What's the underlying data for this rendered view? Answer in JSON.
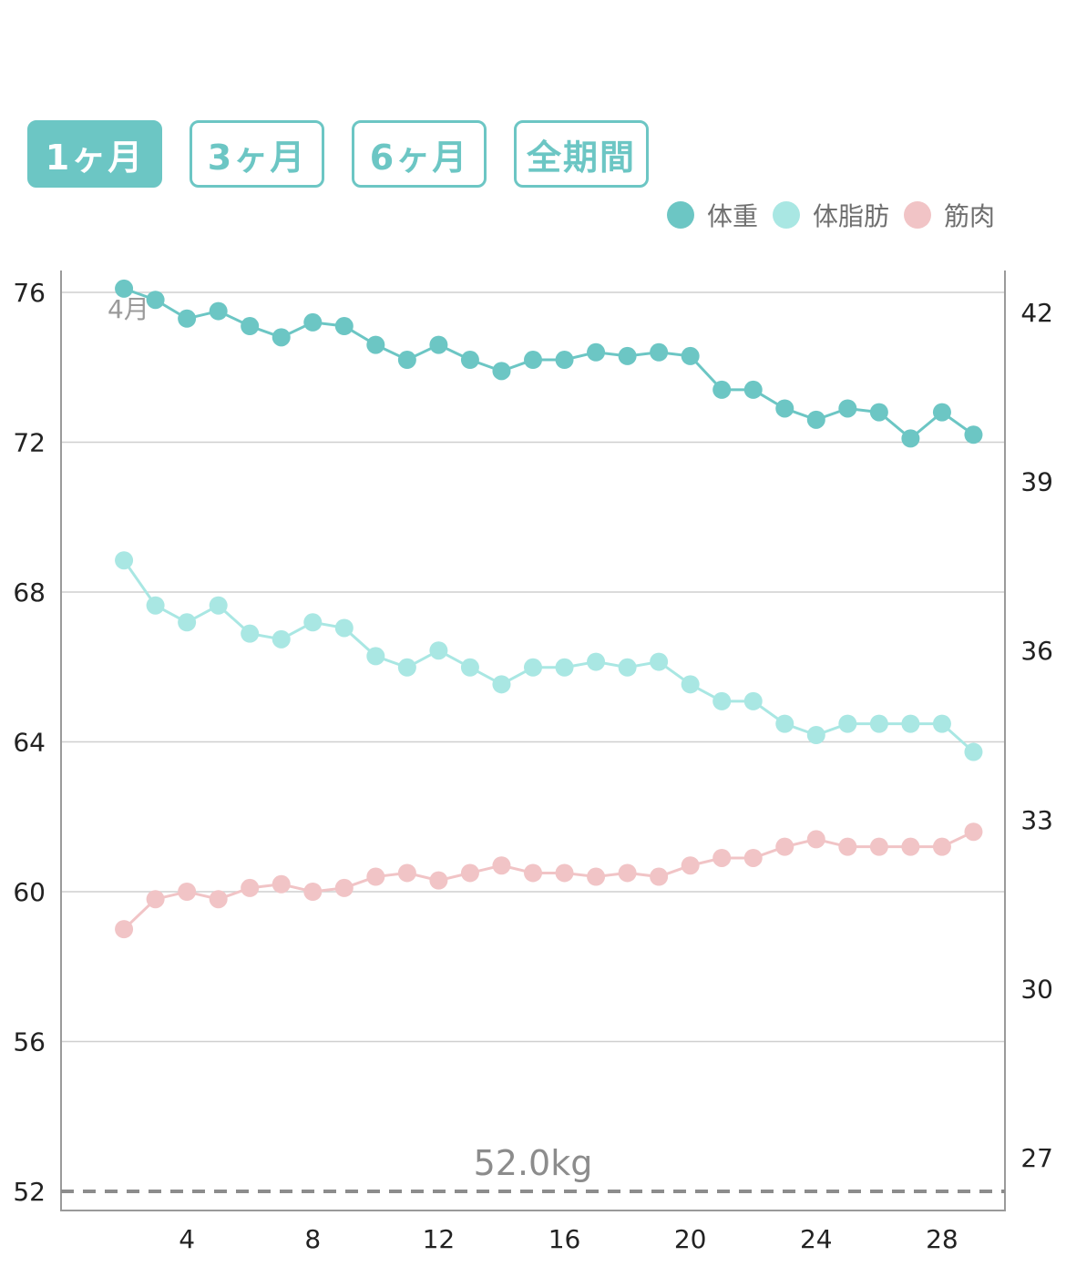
{
  "tabs": [
    {
      "label": "1ヶ月",
      "active": true
    },
    {
      "label": "3ヶ月",
      "active": false
    },
    {
      "label": "6ヶ月",
      "active": false
    },
    {
      "label": "全期間",
      "active": false
    }
  ],
  "colors": {
    "weight": "#6cc6c4",
    "body_fat": "#a9e7e3",
    "muscle": "#f1c4c6",
    "grid": "#cfcfcf",
    "axis": "#9a9a9a",
    "target": "#8c8c8c"
  },
  "legend": [
    {
      "label": "体重",
      "color": "#6cc6c4"
    },
    {
      "label": "体脂肪",
      "color": "#a9e7e3"
    },
    {
      "label": "筋肉",
      "color": "#f1c4c6"
    }
  ],
  "month_label": "4月",
  "target_label": "52.0kg",
  "chart_data": {
    "type": "line",
    "x": [
      2,
      3,
      4,
      5,
      6,
      7,
      8,
      9,
      10,
      11,
      12,
      13,
      14,
      15,
      16,
      17,
      18,
      19,
      20,
      21,
      22,
      23,
      24,
      25,
      26,
      27,
      28,
      29
    ],
    "xlim": [
      0,
      30
    ],
    "x_ticks": [
      4,
      8,
      12,
      16,
      20,
      24,
      28
    ],
    "y_left": {
      "range": [
        52,
        76.6
      ],
      "ticks": [
        76,
        72,
        68,
        64,
        60,
        56,
        52
      ]
    },
    "y_right": {
      "range": [
        26.3,
        42.7
      ],
      "ticks": [
        42,
        39,
        36,
        33,
        30,
        27
      ]
    },
    "target_line": 52.0,
    "grid": true,
    "legend_position": "top-right",
    "series": [
      {
        "name": "体重",
        "axis": "left",
        "color": "#6cc6c4",
        "values": [
          76.1,
          75.8,
          75.3,
          75.5,
          75.1,
          74.8,
          75.2,
          75.1,
          74.6,
          74.2,
          74.6,
          74.2,
          73.9,
          74.2,
          74.2,
          74.4,
          74.3,
          74.4,
          74.3,
          73.4,
          73.4,
          72.9,
          72.6,
          72.9,
          72.8,
          72.1,
          72.8,
          72.2
        ]
      },
      {
        "name": "体脂肪",
        "axis": "right",
        "color": "#a9e7e3",
        "values": [
          37.6,
          36.8,
          36.5,
          36.8,
          36.3,
          36.2,
          36.5,
          36.4,
          35.9,
          35.7,
          36.0,
          35.7,
          35.4,
          35.7,
          35.7,
          35.8,
          35.7,
          35.8,
          35.4,
          35.1,
          35.1,
          34.7,
          34.5,
          34.7,
          34.7,
          34.7,
          34.7,
          34.2
        ]
      },
      {
        "name": "筋肉",
        "axis": "left",
        "color": "#f1c4c6",
        "values": [
          59.0,
          59.8,
          60.0,
          59.8,
          60.1,
          60.2,
          60.0,
          60.1,
          60.4,
          60.5,
          60.3,
          60.5,
          60.7,
          60.5,
          60.5,
          60.4,
          60.5,
          60.4,
          60.7,
          60.9,
          60.9,
          61.2,
          61.4,
          61.2,
          61.2,
          61.2,
          61.2,
          61.6
        ]
      }
    ]
  }
}
